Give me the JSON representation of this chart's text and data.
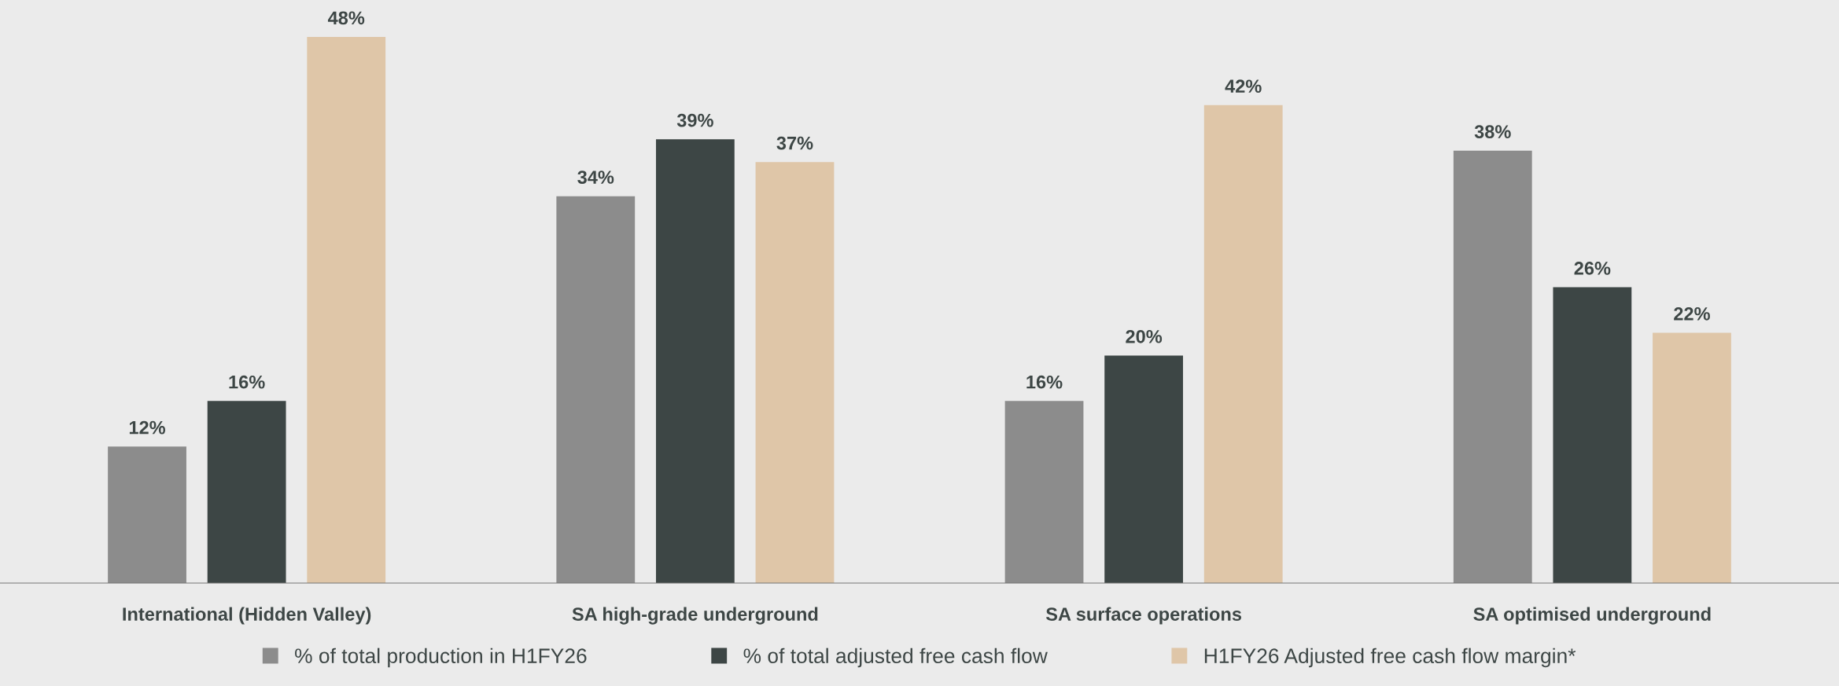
{
  "chart_data": {
    "type": "bar",
    "categories": [
      "International (Hidden Valley)",
      "SA high-grade underground",
      "SA surface operations",
      "SA optimised underground"
    ],
    "series": [
      {
        "name": "% of total production in H1FY26",
        "color": "#8c8c8c",
        "values": [
          12,
          34,
          16,
          38
        ],
        "value_labels": [
          "12%",
          "34%",
          "16%",
          "38%"
        ]
      },
      {
        "name": "% of total adjusted free cash flow",
        "color": "#3d4645",
        "values": [
          16,
          39,
          20,
          26
        ],
        "value_labels": [
          "16%",
          "39%",
          "20%",
          "26%"
        ]
      },
      {
        "name": "H1FY26 Adjusted free cash flow margin*",
        "color": "#dfc6a8",
        "values": [
          48,
          37,
          42,
          22
        ],
        "value_labels": [
          "48%",
          "37%",
          "42%",
          "22%"
        ]
      }
    ],
    "tick_labels": "x",
    "grid": false,
    "legend": "bottom"
  }
}
